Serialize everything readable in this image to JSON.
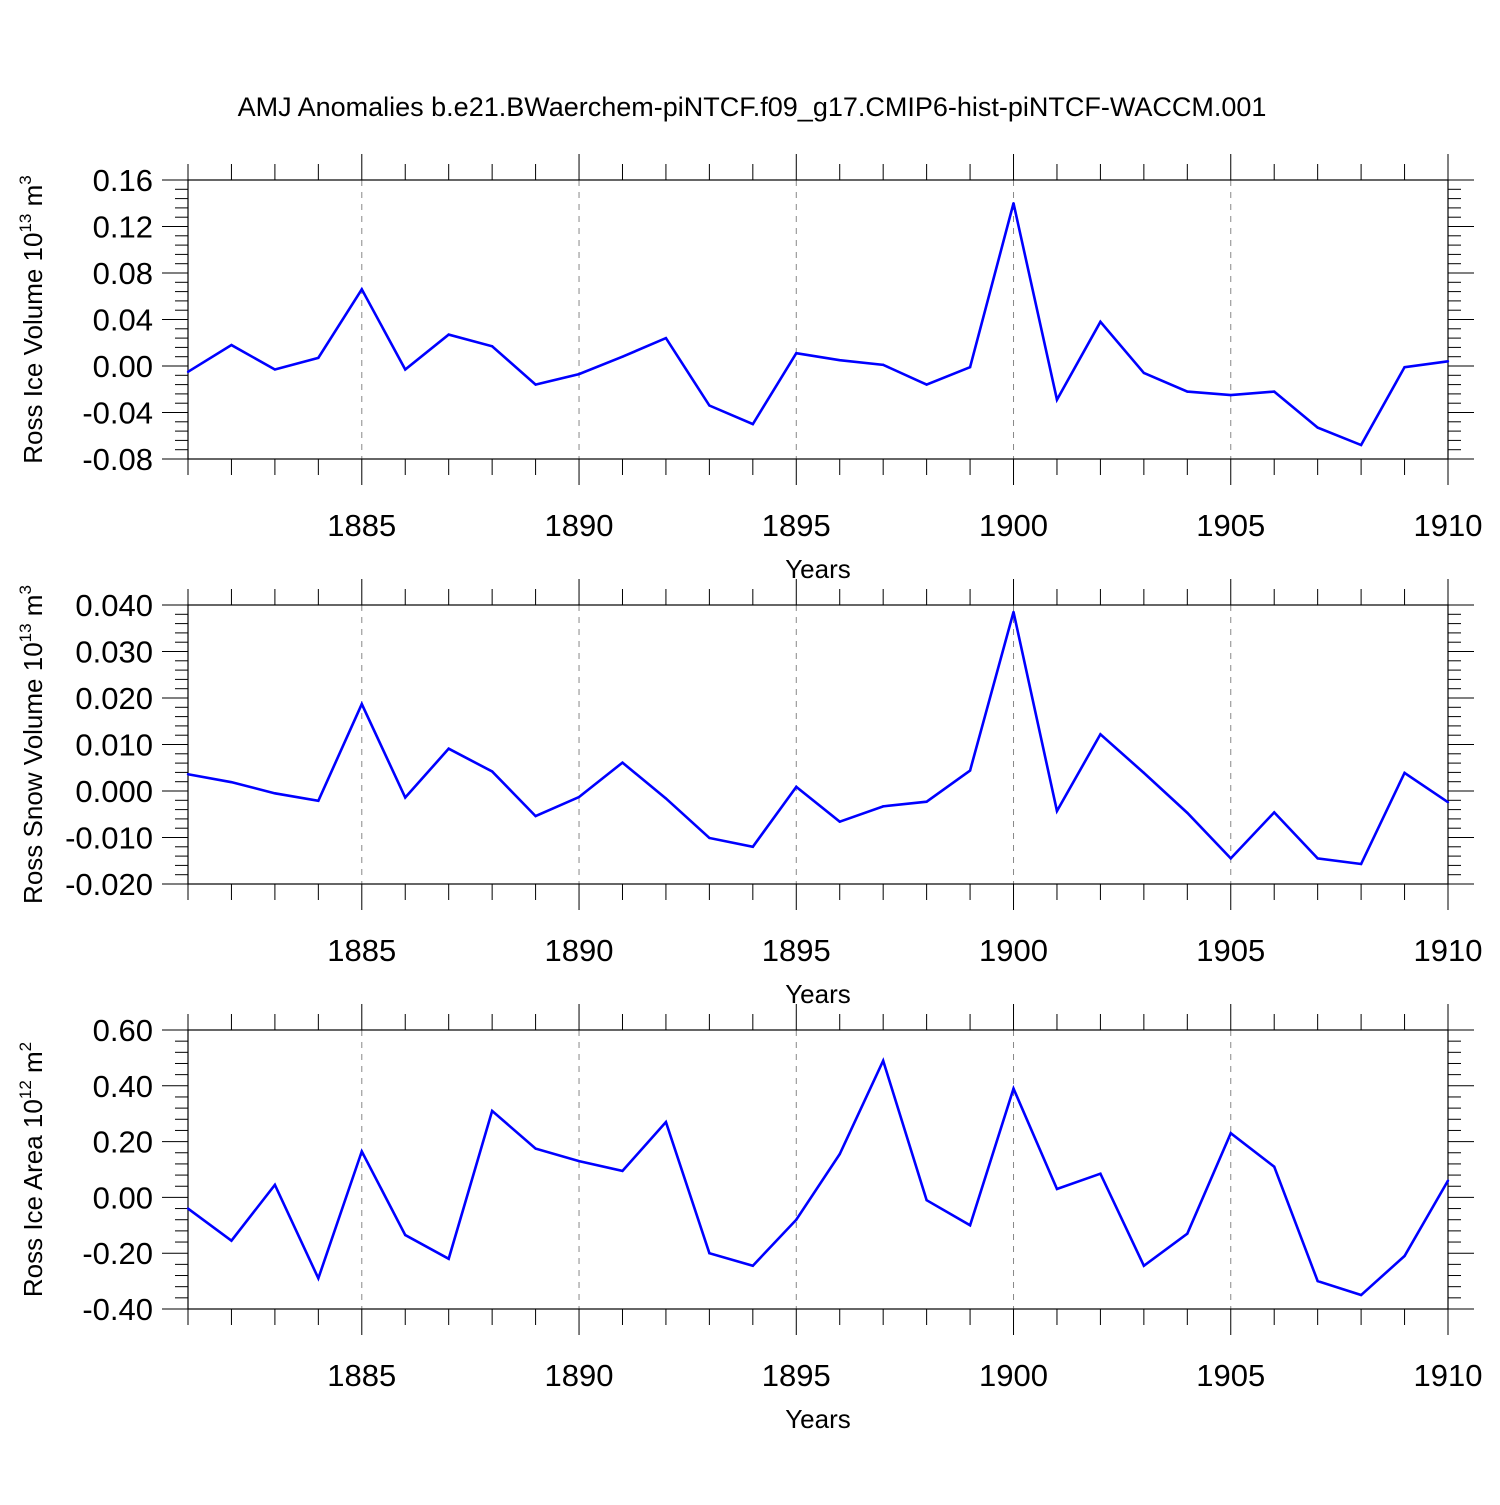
{
  "title": "AMJ Anomalies b.e21.BWaerchem-piNTCF.f09_g17.CMIP6-hist-piNTCF-WACCM.001",
  "colors": {
    "line": "#0000ff",
    "axis": "#000000",
    "grid": "#888888"
  },
  "chart_data": [
    {
      "type": "line",
      "ylabel": {
        "base": "Ross Ice Volume 10",
        "exp": "13",
        "unit": " m",
        "unit_exp": "3"
      },
      "xlabel": "Years",
      "xlim": [
        1881,
        1910
      ],
      "ylim": [
        -0.08,
        0.16
      ],
      "yticks": [
        -0.08,
        -0.04,
        0.0,
        0.04,
        0.08,
        0.12,
        0.16
      ],
      "ytick_labels": [
        "-0.08",
        "-0.04",
        "0.00",
        "0.04",
        "0.08",
        "0.12",
        "0.16"
      ],
      "xticks": [
        1885,
        1890,
        1895,
        1900,
        1905,
        1910
      ],
      "xtick_labels": [
        "1885",
        "1890",
        "1895",
        "1900",
        "1905",
        "1910"
      ],
      "x": [
        1881,
        1882,
        1883,
        1884,
        1885,
        1886,
        1887,
        1888,
        1889,
        1890,
        1891,
        1892,
        1893,
        1894,
        1895,
        1896,
        1897,
        1898,
        1899,
        1900,
        1901,
        1902,
        1903,
        1904,
        1905,
        1906,
        1907,
        1908,
        1909,
        1910
      ],
      "values": [
        -0.005,
        0.018,
        -0.003,
        0.007,
        0.066,
        -0.003,
        0.027,
        0.017,
        -0.016,
        -0.007,
        0.008,
        0.024,
        -0.034,
        -0.05,
        0.011,
        0.005,
        0.001,
        -0.016,
        -0.001,
        0.14,
        -0.029,
        0.038,
        -0.006,
        -0.022,
        -0.025,
        -0.022,
        -0.053,
        -0.068,
        -0.001,
        0.004
      ]
    },
    {
      "type": "line",
      "ylabel": {
        "base": "Ross Snow Volume 10",
        "exp": "13",
        "unit": " m",
        "unit_exp": "3"
      },
      "xlabel": "Years",
      "xlim": [
        1881,
        1910
      ],
      "ylim": [
        -0.02,
        0.04
      ],
      "yticks": [
        -0.02,
        -0.01,
        0.0,
        0.01,
        0.02,
        0.03,
        0.04
      ],
      "ytick_labels": [
        "-0.020",
        "-0.010",
        "0.000",
        "0.010",
        "0.020",
        "0.030",
        "0.040"
      ],
      "xticks": [
        1885,
        1890,
        1895,
        1900,
        1905,
        1910
      ],
      "xtick_labels": [
        "1885",
        "1890",
        "1895",
        "1900",
        "1905",
        "1910"
      ],
      "x": [
        1881,
        1882,
        1883,
        1884,
        1885,
        1886,
        1887,
        1888,
        1889,
        1890,
        1891,
        1892,
        1893,
        1894,
        1895,
        1896,
        1897,
        1898,
        1899,
        1900,
        1901,
        1902,
        1903,
        1904,
        1905,
        1906,
        1907,
        1908,
        1909,
        1910
      ],
      "values": [
        0.0036,
        0.0019,
        -0.0005,
        -0.0021,
        0.0187,
        -0.0014,
        0.0091,
        0.0042,
        -0.0054,
        -0.0013,
        0.0061,
        -0.0016,
        -0.0101,
        -0.012,
        0.0009,
        -0.0066,
        -0.0033,
        -0.0023,
        0.0044,
        0.0385,
        -0.0043,
        0.0122,
        0.0039,
        -0.0047,
        -0.0145,
        -0.0046,
        -0.0145,
        -0.0157,
        0.0039,
        -0.0024
      ]
    },
    {
      "type": "line",
      "ylabel": {
        "base": "Ross Ice Area 10",
        "exp": "12",
        "unit": " m",
        "unit_exp": "2"
      },
      "xlabel": "Years",
      "xlim": [
        1881,
        1910
      ],
      "ylim": [
        -0.4,
        0.6
      ],
      "yticks": [
        -0.4,
        -0.2,
        0.0,
        0.2,
        0.4,
        0.6
      ],
      "ytick_labels": [
        "-0.40",
        "-0.20",
        "0.00",
        "0.20",
        "0.40",
        "0.60"
      ],
      "xticks": [
        1885,
        1890,
        1895,
        1900,
        1905,
        1910
      ],
      "xtick_labels": [
        "1885",
        "1890",
        "1895",
        "1900",
        "1905",
        "1910"
      ],
      "x": [
        1881,
        1882,
        1883,
        1884,
        1885,
        1886,
        1887,
        1888,
        1889,
        1890,
        1891,
        1892,
        1893,
        1894,
        1895,
        1896,
        1897,
        1898,
        1899,
        1900,
        1901,
        1902,
        1903,
        1904,
        1905,
        1906,
        1907,
        1908,
        1909,
        1910
      ],
      "values": [
        -0.04,
        -0.155,
        0.045,
        -0.29,
        0.165,
        -0.135,
        -0.22,
        0.31,
        0.175,
        0.13,
        0.095,
        0.27,
        -0.2,
        -0.245,
        -0.08,
        0.155,
        0.49,
        -0.01,
        -0.1,
        0.39,
        0.03,
        0.085,
        -0.245,
        -0.13,
        0.23,
        0.11,
        -0.3,
        -0.35,
        -0.21,
        0.06
      ]
    }
  ]
}
